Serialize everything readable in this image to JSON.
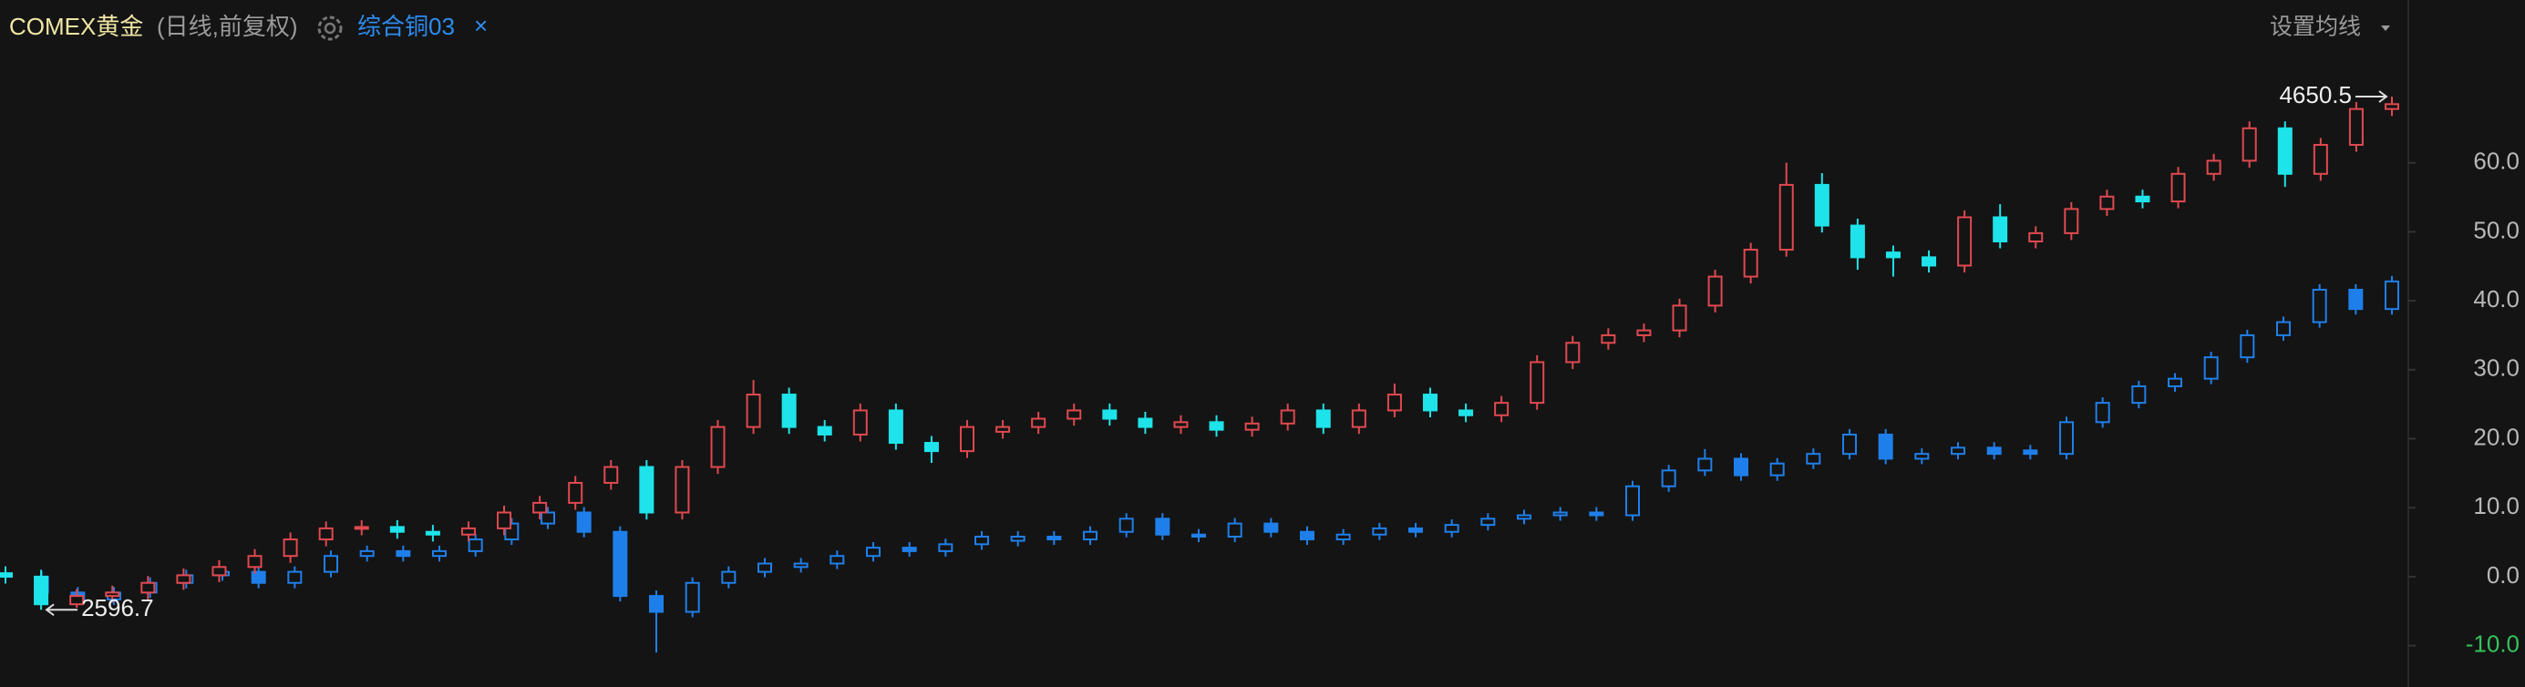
{
  "chart_data": {
    "type": "candlestick",
    "subtitle": "(日线,前复权)",
    "remove_icon": "×",
    "button": "设置均线",
    "ylim": [
      -15.6,
      76.6
    ],
    "yticks": [
      {
        "value": -10,
        "label": "-10.0"
      },
      {
        "value": 0,
        "label": "0.0"
      },
      {
        "value": 10,
        "label": "10.0"
      },
      {
        "value": 20,
        "label": "20.0"
      },
      {
        "value": 30,
        "label": "30.0"
      },
      {
        "value": 40,
        "label": "40.0"
      },
      {
        "value": 50,
        "label": "50.0"
      },
      {
        "value": 60,
        "label": "60.0"
      }
    ],
    "series": [
      {
        "name": "COMEX黄金",
        "up_color": "#e0494f",
        "down_color": "#1ee3ea",
        "name_color": "#efe6a4",
        "high_label": "4650.5",
        "low_label": "2596.7",
        "open": [
          0.5,
          0.0,
          -4.0,
          -2.8,
          -2.3,
          -0.9,
          0.2,
          1.4,
          3.0,
          5.4,
          7.0,
          7.2,
          6.5,
          6.1,
          7.0,
          9.3,
          10.7,
          13.6,
          15.9,
          9.3,
          15.9,
          21.7,
          26.4,
          21.7,
          20.6,
          24.1,
          19.4,
          18.2,
          21.0,
          21.7,
          22.9,
          24.1,
          22.9,
          21.7,
          22.4,
          21.3,
          22.2,
          24.1,
          21.7,
          24.1,
          26.4,
          24.1,
          23.4,
          25.2,
          31.1,
          33.9,
          35.0,
          35.7,
          39.3,
          43.5,
          47.4,
          56.8,
          50.9,
          47.0,
          46.3,
          45.1,
          52.1,
          48.6,
          49.8,
          53.3,
          55.1,
          54.4,
          58.4,
          60.3,
          65.0,
          58.4,
          62.6,
          67.8
        ],
        "high": [
          1.5,
          1.0,
          -1.8,
          -1.3,
          0.1,
          1.2,
          2.4,
          4.0,
          6.4,
          8.0,
          8.2,
          8.2,
          7.5,
          8.0,
          10.3,
          11.7,
          14.6,
          16.9,
          16.9,
          16.9,
          22.7,
          28.5,
          27.4,
          22.7,
          25.1,
          25.1,
          20.4,
          22.7,
          22.7,
          23.9,
          25.1,
          25.1,
          23.9,
          23.4,
          23.4,
          23.2,
          25.1,
          25.1,
          25.1,
          28.0,
          27.4,
          25.1,
          26.2,
          32.1,
          34.9,
          36.0,
          36.7,
          40.3,
          44.5,
          48.4,
          60.0,
          58.5,
          51.9,
          48.0,
          47.3,
          53.1,
          54.0,
          50.8,
          54.3,
          56.1,
          56.1,
          59.4,
          61.3,
          66.0,
          66.0,
          63.6,
          68.8,
          69.6
        ],
        "low": [
          -1.0,
          -4.8,
          -4.5,
          -3.8,
          -3.3,
          -1.9,
          -0.8,
          0.4,
          2.0,
          4.4,
          6.0,
          5.5,
          5.1,
          5.1,
          6.0,
          8.3,
          9.7,
          12.6,
          8.3,
          8.3,
          14.9,
          20.7,
          20.7,
          19.6,
          19.6,
          18.4,
          16.5,
          17.2,
          20.0,
          20.7,
          21.9,
          21.9,
          20.7,
          20.7,
          20.3,
          20.3,
          21.2,
          20.7,
          20.7,
          23.1,
          23.1,
          22.4,
          22.4,
          24.2,
          30.1,
          32.9,
          34.0,
          34.7,
          38.3,
          42.5,
          46.4,
          49.9,
          44.5,
          43.5,
          44.1,
          44.1,
          47.6,
          47.6,
          48.8,
          52.3,
          53.4,
          53.4,
          57.4,
          59.3,
          56.5,
          57.4,
          61.6,
          66.8
        ],
        "close": [
          0.0,
          -4.0,
          -2.8,
          -2.3,
          -0.9,
          0.2,
          1.4,
          3.0,
          5.4,
          7.0,
          7.2,
          6.5,
          6.1,
          7.0,
          9.3,
          10.7,
          13.6,
          15.9,
          9.3,
          15.9,
          21.7,
          26.4,
          21.7,
          20.6,
          24.1,
          19.4,
          18.2,
          21.7,
          21.7,
          22.9,
          24.1,
          22.9,
          21.7,
          22.4,
          21.3,
          22.2,
          24.1,
          21.7,
          24.1,
          26.4,
          24.1,
          23.4,
          25.2,
          31.1,
          33.9,
          35.0,
          35.7,
          39.3,
          43.5,
          47.4,
          56.8,
          50.9,
          46.3,
          46.3,
          45.1,
          52.1,
          48.6,
          49.8,
          53.3,
          55.1,
          54.4,
          58.4,
          60.3,
          65.0,
          58.4,
          62.6,
          67.8,
          68.5
        ]
      },
      {
        "name": "综合铜03",
        "up_color": "#1f7fea",
        "down_color": "#1f7fea",
        "name_color": "#2d8cf0",
        "open": [
          0.3,
          0.0,
          -2.3,
          -3.3,
          -2.3,
          -0.9,
          0.2,
          0.7,
          -0.9,
          0.7,
          3.0,
          3.7,
          3.0,
          3.7,
          5.4,
          7.7,
          9.3,
          6.5,
          -2.8,
          -5.1,
          -0.9,
          0.7,
          1.4,
          1.9,
          3.0,
          4.2,
          3.7,
          4.7,
          5.2,
          5.8,
          5.4,
          6.5,
          8.4,
          6.1,
          5.8,
          7.7,
          6.5,
          5.4,
          6.1,
          7.0,
          6.5,
          7.5,
          8.4,
          8.9,
          9.3,
          8.9,
          13.1,
          15.4,
          17.1,
          14.7,
          16.4,
          17.8,
          20.6,
          17.1,
          17.8,
          18.7,
          18.3,
          17.8,
          22.4,
          25.2,
          27.6,
          28.7,
          31.8,
          35.0,
          36.9,
          41.6,
          38.8
        ],
        "high": [
          1.1,
          0.8,
          -1.5,
          -1.5,
          -0.1,
          1.0,
          1.5,
          1.5,
          1.5,
          3.8,
          4.5,
          4.5,
          4.5,
          6.2,
          8.5,
          10.1,
          10.1,
          7.3,
          -2.0,
          -0.1,
          1.5,
          2.7,
          2.7,
          3.8,
          5.0,
          5.0,
          5.5,
          6.6,
          6.6,
          6.6,
          7.3,
          9.2,
          9.2,
          6.9,
          8.5,
          8.5,
          7.3,
          6.9,
          7.8,
          7.8,
          8.3,
          9.2,
          9.7,
          10.1,
          10.1,
          13.9,
          16.2,
          18.5,
          17.9,
          17.2,
          18.6,
          21.4,
          21.4,
          18.6,
          19.5,
          19.5,
          19.1,
          23.2,
          26.0,
          28.4,
          29.5,
          32.6,
          35.8,
          37.7,
          42.4,
          42.4,
          43.6
        ],
        "low": [
          -0.8,
          -3.1,
          -4.1,
          -4.1,
          -3.1,
          -1.7,
          -0.6,
          -1.7,
          -1.7,
          -0.1,
          2.2,
          2.2,
          2.2,
          2.9,
          4.6,
          6.9,
          5.7,
          -3.6,
          -11.0,
          -5.9,
          -1.7,
          -0.1,
          0.6,
          1.1,
          2.2,
          2.9,
          2.9,
          3.9,
          4.4,
          4.6,
          4.6,
          5.7,
          5.3,
          5.0,
          5.0,
          5.7,
          4.6,
          4.6,
          5.3,
          5.7,
          5.7,
          6.7,
          7.6,
          8.1,
          8.1,
          8.1,
          12.3,
          14.6,
          13.9,
          13.9,
          15.6,
          17.0,
          16.3,
          16.3,
          17.0,
          17.0,
          17.0,
          17.0,
          21.6,
          24.4,
          26.8,
          27.9,
          31.0,
          34.2,
          36.1,
          38.0,
          38.0
        ],
        "close": [
          0.0,
          -2.3,
          -3.3,
          -2.3,
          -0.9,
          0.2,
          0.7,
          -0.9,
          0.7,
          3.0,
          3.7,
          3.0,
          3.7,
          5.4,
          7.7,
          9.3,
          6.5,
          -2.8,
          -5.1,
          -0.9,
          0.7,
          1.9,
          1.9,
          3.0,
          4.2,
          3.7,
          4.7,
          5.8,
          5.8,
          5.4,
          6.5,
          8.4,
          6.1,
          5.8,
          7.7,
          6.5,
          5.4,
          6.1,
          7.0,
          6.5,
          7.5,
          8.4,
          8.9,
          9.3,
          8.9,
          13.1,
          15.4,
          17.1,
          14.7,
          16.4,
          17.8,
          20.6,
          17.1,
          17.8,
          18.7,
          17.8,
          17.8,
          22.4,
          25.2,
          27.6,
          28.7,
          31.8,
          35.0,
          36.9,
          41.6,
          38.8,
          42.8
        ]
      }
    ]
  }
}
